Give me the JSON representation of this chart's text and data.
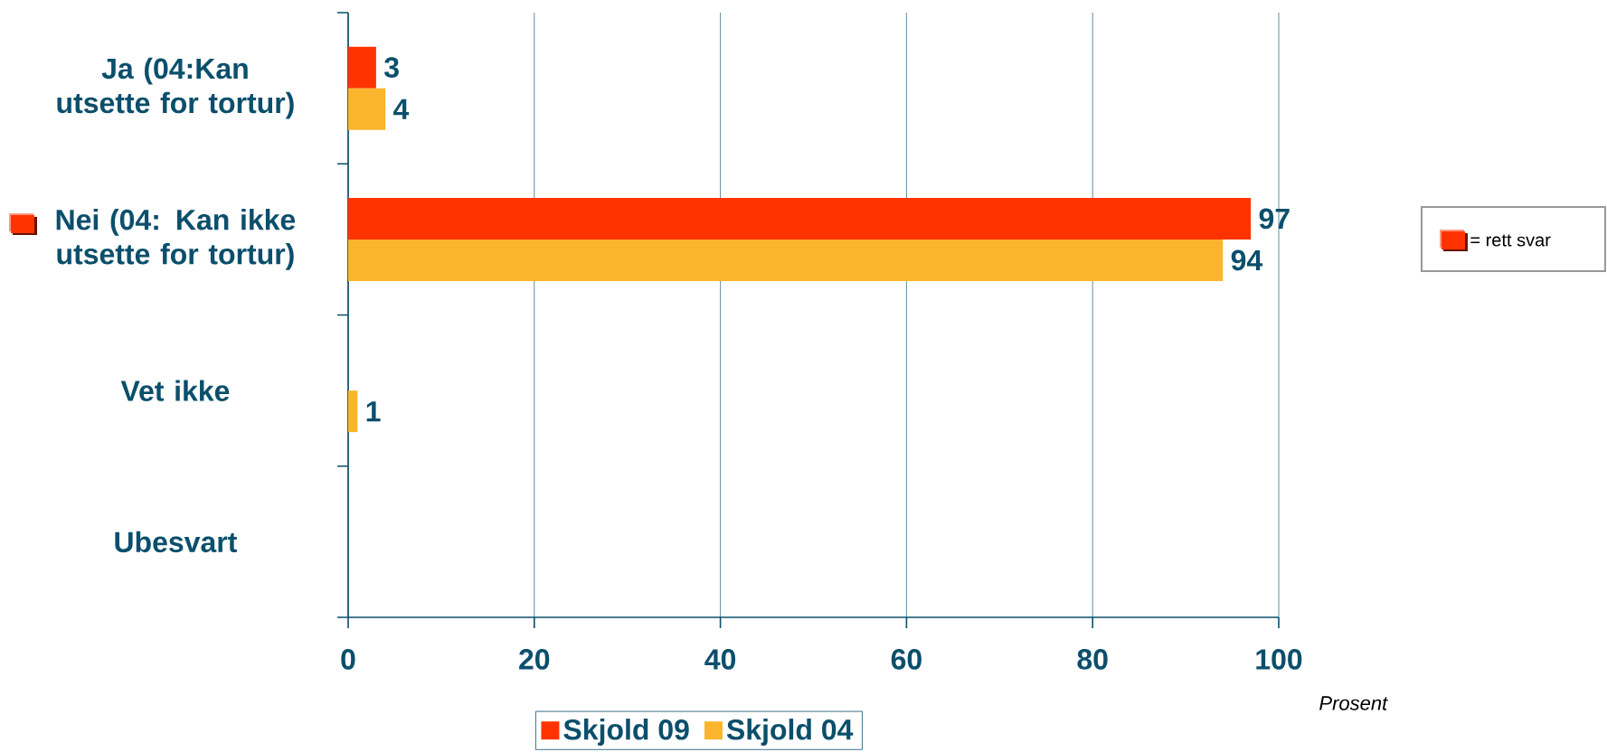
{
  "chart_data": {
    "type": "bar",
    "orientation": "horizontal",
    "xlabel": "Prosent",
    "categories": [
      "Ja (04:Kan utsette for tortur)",
      "Nei (04: Kan ikke utsette for tortur)",
      "Vet ikke",
      "Ubesvart"
    ],
    "series": [
      {
        "name": "Skjold 09",
        "color": "#ff3300",
        "values": [
          3,
          97,
          null,
          null
        ]
      },
      {
        "name": "Skjold 04",
        "color": "#fbb52c",
        "values": [
          4,
          94,
          1,
          null
        ]
      }
    ],
    "xlim": [
      0,
      100
    ],
    "xticks": [
      0,
      20,
      40,
      60,
      80,
      100
    ],
    "grid": "x",
    "legend": "bottom",
    "data_labels": true,
    "annotations": [
      "= rett svar"
    ]
  }
}
